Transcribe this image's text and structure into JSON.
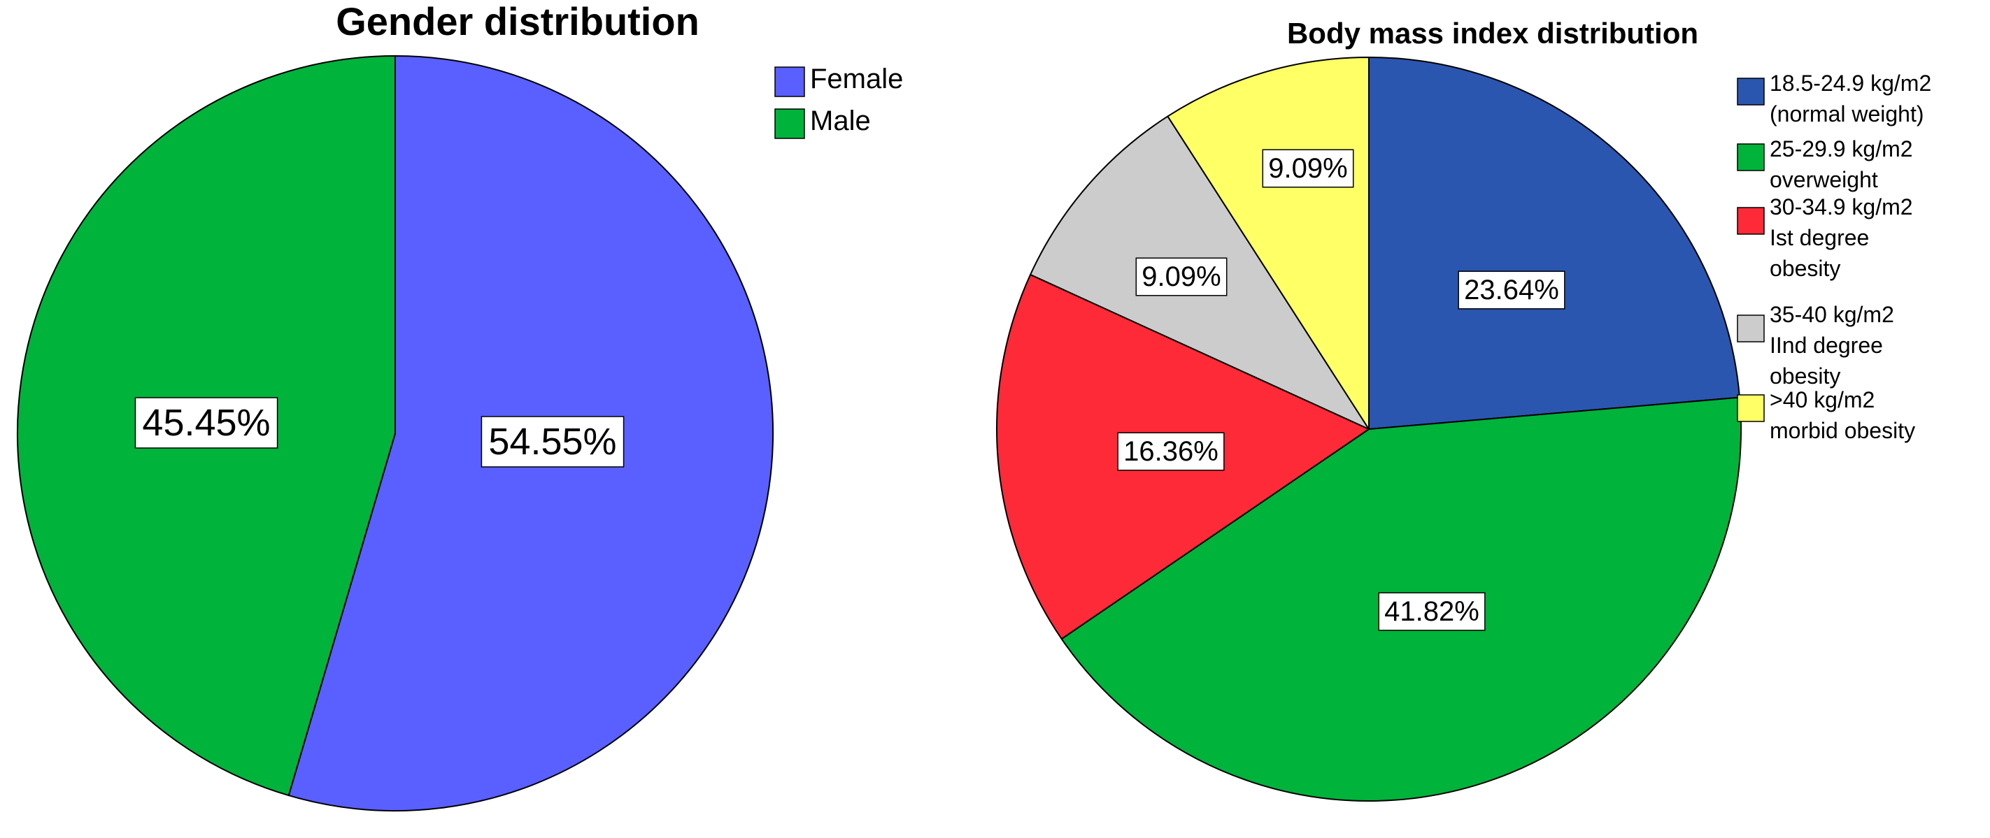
{
  "chart_data": [
    {
      "type": "pie",
      "title": "Gender distribution",
      "slices": [
        {
          "label": "Female",
          "value": 54.55,
          "display": "54.55%",
          "color": "#5A5FFF"
        },
        {
          "label": "Male",
          "value": 45.45,
          "display": "45.45%",
          "color": "#00B33B"
        }
      ],
      "legend_position": "top-right"
    },
    {
      "type": "pie",
      "title": "Body mass index distribution",
      "slices": [
        {
          "label": "18.5-24.9 kg/m2 (normal weight)",
          "legend_lines": [
            "18.5-24.9 kg/m2",
            "(normal weight)"
          ],
          "value": 23.64,
          "display": "23.64%",
          "color": "#2B56B0"
        },
        {
          "label": "25-29.9 kg/m2 overweight",
          "legend_lines": [
            "25-29.9 kg/m2",
            "overweight"
          ],
          "value": 41.82,
          "display": "41.82%",
          "color": "#00B33B"
        },
        {
          "label": "30-34.9 kg/m2 Ist degree obesity",
          "legend_lines": [
            "30-34.9 kg/m2",
            "Ist degree",
            "obesity"
          ],
          "value": 16.36,
          "display": "16.36%",
          "color": "#FF2A38"
        },
        {
          "label": "35-40 kg/m2 IInd degree obesity",
          "legend_lines": [
            "35-40 kg/m2",
            "IInd degree",
            "obesity"
          ],
          "value": 9.09,
          "display": "9.09%",
          "color": "#CCCCCC"
        },
        {
          "label": ">40 kg/m2 morbid obesity",
          "legend_lines": [
            ">40 kg/m2",
            "morbid obesity"
          ],
          "value": 9.09,
          "display": "9.09%",
          "color": "#FFFF66"
        }
      ],
      "legend_position": "right"
    }
  ]
}
